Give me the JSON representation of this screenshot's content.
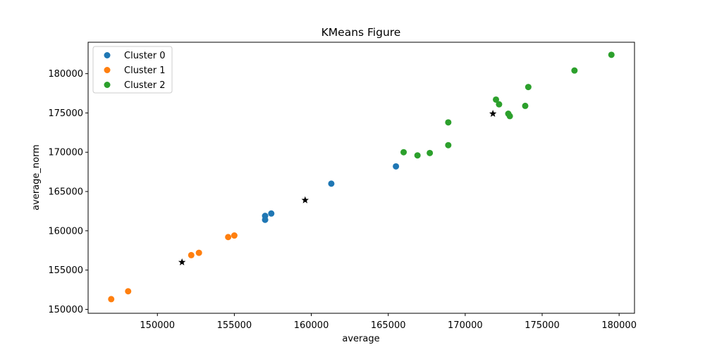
{
  "chart_data": {
    "type": "scatter",
    "title": "KMeans Figure",
    "xlabel": "average",
    "ylabel": "average_norm",
    "xlim": [
      145500,
      181000
    ],
    "ylim": [
      149500,
      184000
    ],
    "xticks": [
      150000,
      155000,
      160000,
      165000,
      170000,
      175000,
      180000
    ],
    "yticks": [
      150000,
      155000,
      160000,
      165000,
      170000,
      175000,
      180000
    ],
    "grid": false,
    "legend_position": "top-left",
    "series": [
      {
        "name": "Cluster 0",
        "color": "#1f77b4",
        "points": [
          [
            157000,
            161900
          ],
          [
            157000,
            161400
          ],
          [
            157400,
            162200
          ],
          [
            161300,
            166000
          ],
          [
            165500,
            168200
          ]
        ]
      },
      {
        "name": "Cluster 1",
        "color": "#ff7f0e",
        "points": [
          [
            147000,
            151300
          ],
          [
            148100,
            152300
          ],
          [
            152200,
            156900
          ],
          [
            152700,
            157200
          ],
          [
            154600,
            159200
          ],
          [
            155000,
            159400
          ]
        ]
      },
      {
        "name": "Cluster 2",
        "color": "#2ca02c",
        "points": [
          [
            166000,
            170000
          ],
          [
            166900,
            169600
          ],
          [
            167700,
            169900
          ],
          [
            168900,
            170900
          ],
          [
            168900,
            173800
          ],
          [
            172000,
            176700
          ],
          [
            172200,
            176100
          ],
          [
            172800,
            174900
          ],
          [
            172900,
            174600
          ],
          [
            173900,
            175900
          ],
          [
            174100,
            178300
          ],
          [
            177100,
            180400
          ],
          [
            179500,
            182400
          ]
        ]
      }
    ],
    "centroids": {
      "color": "#000000",
      "marker": "star",
      "points": [
        [
          151600,
          156000
        ],
        [
          159600,
          163900
        ],
        [
          171800,
          174900
        ]
      ]
    }
  }
}
